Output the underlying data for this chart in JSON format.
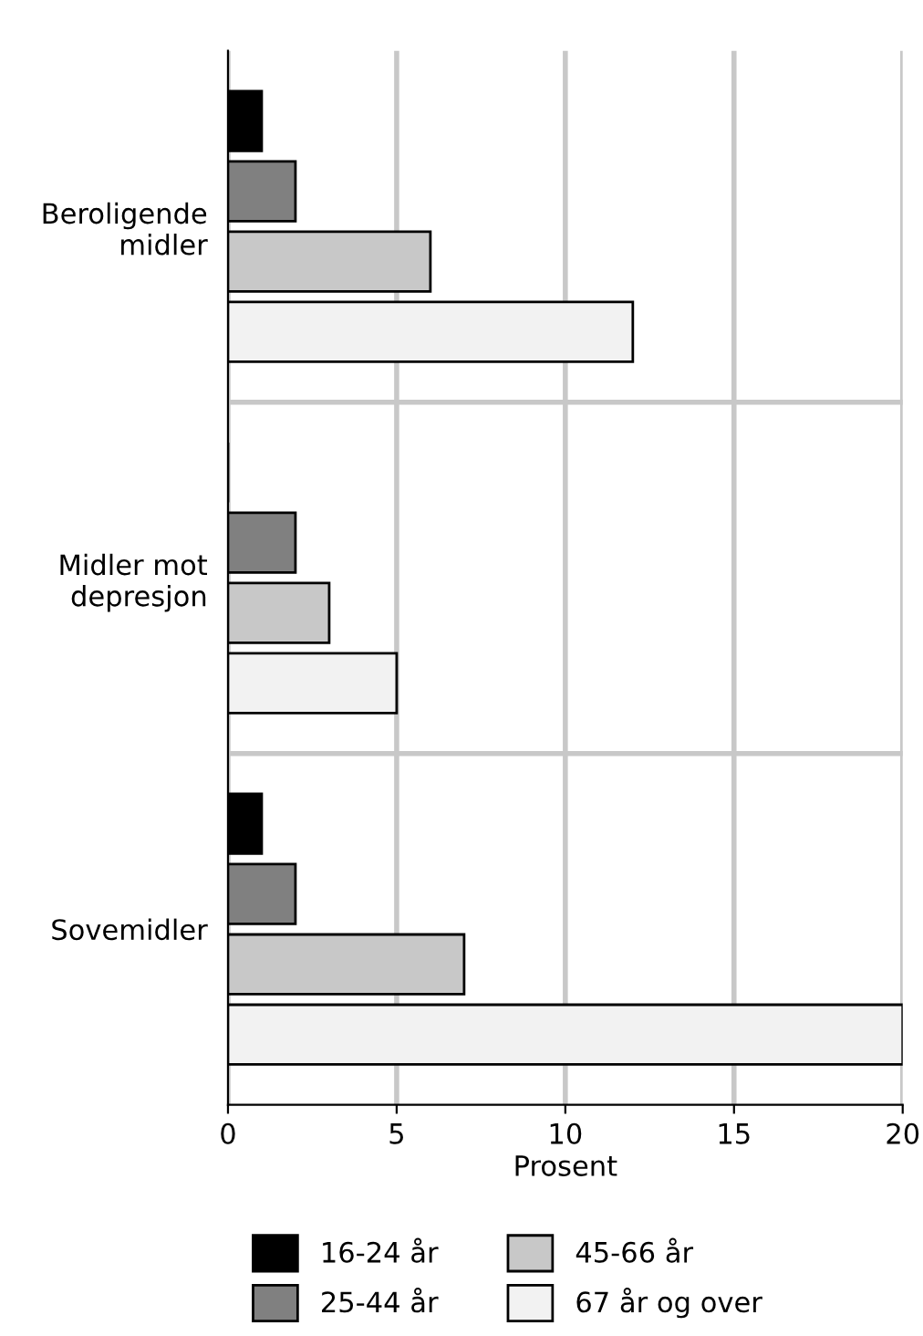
{
  "chart_data": {
    "type": "bar",
    "orientation": "horizontal",
    "xlabel": "Prosent",
    "categories": [
      "Beroligende\nmidler",
      "Midler mot\ndepresjon",
      "Sovemidler"
    ],
    "series": [
      {
        "name": "16-24 år",
        "color": "#000000",
        "values": [
          1,
          0,
          1
        ]
      },
      {
        "name": "25-44 år",
        "color": "#808080",
        "values": [
          2,
          2,
          2
        ]
      },
      {
        "name": "45-66 år",
        "color": "#c8c8c8",
        "values": [
          6,
          3,
          7
        ]
      },
      {
        "name": "67 år og over",
        "color": "#f2f2f2",
        "values": [
          12,
          5,
          20
        ]
      }
    ],
    "xlim": [
      0,
      20
    ],
    "xticks": [
      0,
      5,
      10,
      15,
      20
    ],
    "grid": true,
    "legend": "bottom"
  }
}
